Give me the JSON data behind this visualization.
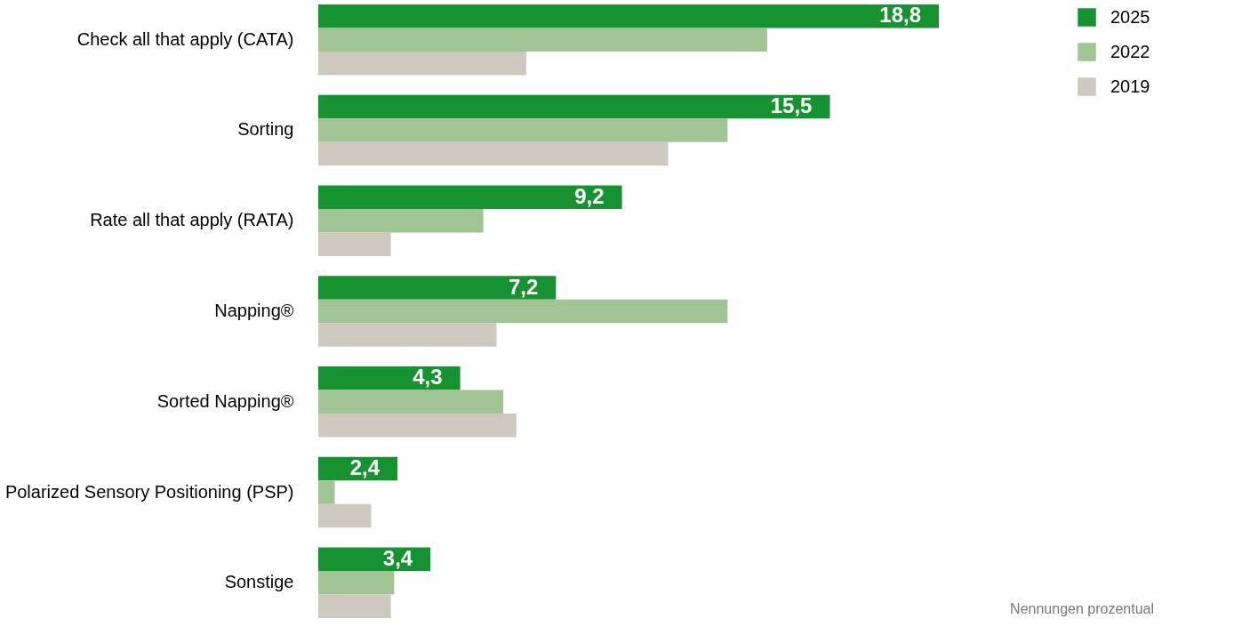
{
  "chart_data": {
    "type": "bar",
    "orientation": "horizontal",
    "categories": [
      "Check all that apply (CATA)",
      "Sorting",
      "Rate all that apply (RATA)",
      "Napping®",
      "Sorted Napping®",
      "Polarized Sensory Positioning (PSP)",
      "Sonstige"
    ],
    "series": [
      {
        "name": "2025",
        "color": "#179231",
        "values": [
          18.8,
          15.5,
          9.2,
          7.2,
          4.3,
          2.4,
          3.4
        ],
        "value_labels": [
          "18,8",
          "15,5",
          "9,2",
          "7,2",
          "4,3",
          "2,4",
          "3,4"
        ]
      },
      {
        "name": "2022",
        "color": "#a0c493",
        "values": [
          13.6,
          12.4,
          5.0,
          12.4,
          5.6,
          0.5,
          2.3
        ]
      },
      {
        "name": "2019",
        "color": "#cdc9be",
        "values": [
          6.3,
          10.6,
          2.2,
          5.4,
          6.0,
          1.6,
          2.2
        ]
      }
    ],
    "legend": "top right",
    "grid": false,
    "annotations": [
      "Nennungen prozentual"
    ]
  }
}
